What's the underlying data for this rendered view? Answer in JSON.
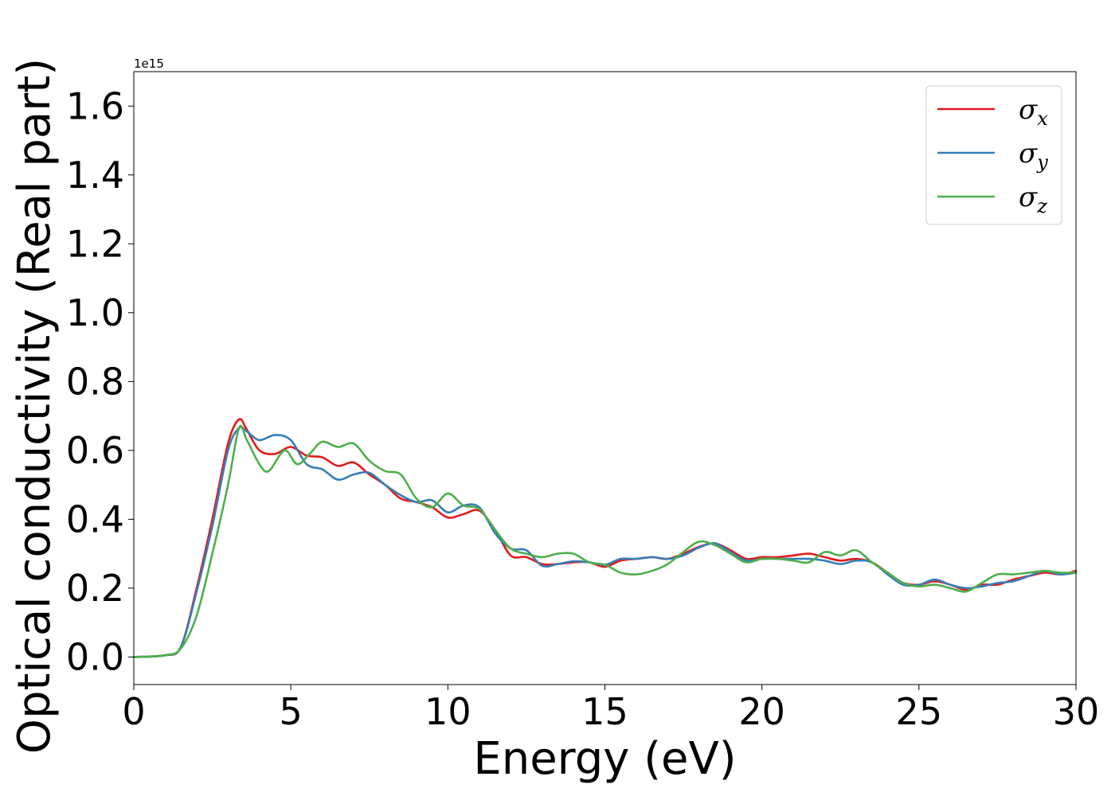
{
  "chart_data": {
    "type": "line",
    "title": "",
    "xlabel": "Energy (eV)",
    "ylabel": "Optical conductivity (Real part)",
    "y_offset_label": "1e15",
    "xlim": [
      0,
      30
    ],
    "ylim": [
      -0.08,
      1.7
    ],
    "x_ticks": [
      0,
      5,
      10,
      15,
      20,
      25,
      30
    ],
    "y_ticks": [
      0.0,
      0.2,
      0.4,
      0.6,
      0.8,
      1.0,
      1.2,
      1.4,
      1.6
    ],
    "x_tick_labels": [
      "0",
      "5",
      "10",
      "15",
      "20",
      "25",
      "30"
    ],
    "y_tick_labels": [
      "0.0",
      "0.2",
      "0.4",
      "0.6",
      "0.8",
      "1.0",
      "1.2",
      "1.4",
      "1.6"
    ],
    "grid": false,
    "legend_position": "top-right",
    "series": [
      {
        "name": "σx",
        "symbol": "σ",
        "sub": "x",
        "color": "#e41a1c",
        "points": [
          [
            0,
            0
          ],
          [
            1,
            0.005
          ],
          [
            1.5,
            0.03
          ],
          [
            2,
            0.2
          ],
          [
            2.5,
            0.4
          ],
          [
            3,
            0.62
          ],
          [
            3.35,
            0.69
          ],
          [
            3.6,
            0.66
          ],
          [
            4,
            0.6
          ],
          [
            4.5,
            0.59
          ],
          [
            5,
            0.61
          ],
          [
            5.5,
            0.585
          ],
          [
            6,
            0.58
          ],
          [
            6.5,
            0.555
          ],
          [
            7,
            0.565
          ],
          [
            7.5,
            0.53
          ],
          [
            8,
            0.5
          ],
          [
            8.5,
            0.46
          ],
          [
            9,
            0.45
          ],
          [
            9.5,
            0.435
          ],
          [
            10,
            0.405
          ],
          [
            10.5,
            0.415
          ],
          [
            11,
            0.425
          ],
          [
            11.5,
            0.37
          ],
          [
            12,
            0.295
          ],
          [
            12.5,
            0.29
          ],
          [
            13,
            0.27
          ],
          [
            13.5,
            0.27
          ],
          [
            14,
            0.275
          ],
          [
            14.5,
            0.275
          ],
          [
            15,
            0.262
          ],
          [
            15.5,
            0.28
          ],
          [
            16,
            0.285
          ],
          [
            16.5,
            0.29
          ],
          [
            17,
            0.285
          ],
          [
            17.5,
            0.3
          ],
          [
            18,
            0.32
          ],
          [
            18.5,
            0.33
          ],
          [
            19,
            0.31
          ],
          [
            19.5,
            0.285
          ],
          [
            20,
            0.29
          ],
          [
            20.5,
            0.29
          ],
          [
            21,
            0.295
          ],
          [
            21.5,
            0.3
          ],
          [
            22,
            0.29
          ],
          [
            22.5,
            0.28
          ],
          [
            23,
            0.285
          ],
          [
            23.5,
            0.275
          ],
          [
            24,
            0.245
          ],
          [
            24.5,
            0.215
          ],
          [
            25,
            0.21
          ],
          [
            25.5,
            0.22
          ],
          [
            26,
            0.21
          ],
          [
            26.5,
            0.195
          ],
          [
            27,
            0.21
          ],
          [
            27.5,
            0.21
          ],
          [
            28,
            0.225
          ],
          [
            28.5,
            0.235
          ],
          [
            29,
            0.245
          ],
          [
            29.5,
            0.24
          ],
          [
            30,
            0.25
          ]
        ]
      },
      {
        "name": "σy",
        "symbol": "σ",
        "sub": "y",
        "color": "#377eb8",
        "points": [
          [
            0,
            0
          ],
          [
            1,
            0.005
          ],
          [
            1.5,
            0.03
          ],
          [
            2,
            0.19
          ],
          [
            2.5,
            0.38
          ],
          [
            3,
            0.6
          ],
          [
            3.35,
            0.665
          ],
          [
            3.6,
            0.655
          ],
          [
            4,
            0.63
          ],
          [
            4.5,
            0.645
          ],
          [
            5,
            0.63
          ],
          [
            5.5,
            0.56
          ],
          [
            6,
            0.545
          ],
          [
            6.5,
            0.515
          ],
          [
            7,
            0.53
          ],
          [
            7.5,
            0.535
          ],
          [
            8,
            0.5
          ],
          [
            8.5,
            0.47
          ],
          [
            9,
            0.45
          ],
          [
            9.5,
            0.455
          ],
          [
            10,
            0.42
          ],
          [
            10.5,
            0.44
          ],
          [
            11,
            0.435
          ],
          [
            11.5,
            0.36
          ],
          [
            12,
            0.315
          ],
          [
            12.5,
            0.31
          ],
          [
            13,
            0.265
          ],
          [
            13.5,
            0.27
          ],
          [
            14,
            0.278
          ],
          [
            14.5,
            0.275
          ],
          [
            15,
            0.268
          ],
          [
            15.5,
            0.285
          ],
          [
            16,
            0.285
          ],
          [
            16.5,
            0.29
          ],
          [
            17,
            0.285
          ],
          [
            17.5,
            0.295
          ],
          [
            18,
            0.318
          ],
          [
            18.5,
            0.33
          ],
          [
            19,
            0.305
          ],
          [
            19.5,
            0.28
          ],
          [
            20,
            0.285
          ],
          [
            20.5,
            0.285
          ],
          [
            21,
            0.285
          ],
          [
            21.5,
            0.285
          ],
          [
            22,
            0.28
          ],
          [
            22.5,
            0.27
          ],
          [
            23,
            0.28
          ],
          [
            23.5,
            0.275
          ],
          [
            24,
            0.24
          ],
          [
            24.5,
            0.21
          ],
          [
            25,
            0.21
          ],
          [
            25.5,
            0.225
          ],
          [
            26,
            0.21
          ],
          [
            26.5,
            0.2
          ],
          [
            27,
            0.205
          ],
          [
            27.5,
            0.215
          ],
          [
            28,
            0.22
          ],
          [
            28.5,
            0.235
          ],
          [
            29,
            0.25
          ],
          [
            29.5,
            0.24
          ],
          [
            30,
            0.245
          ]
        ]
      },
      {
        "name": "σz",
        "symbol": "σ",
        "sub": "z",
        "color": "#4daf4a",
        "points": [
          [
            0,
            0
          ],
          [
            1,
            0.005
          ],
          [
            1.5,
            0.025
          ],
          [
            2,
            0.12
          ],
          [
            2.5,
            0.3
          ],
          [
            3,
            0.5
          ],
          [
            3.35,
            0.665
          ],
          [
            3.6,
            0.63
          ],
          [
            4,
            0.56
          ],
          [
            4.3,
            0.54
          ],
          [
            4.8,
            0.6
          ],
          [
            5.2,
            0.56
          ],
          [
            5.6,
            0.59
          ],
          [
            6,
            0.625
          ],
          [
            6.5,
            0.61
          ],
          [
            7,
            0.62
          ],
          [
            7.5,
            0.57
          ],
          [
            8,
            0.54
          ],
          [
            8.5,
            0.53
          ],
          [
            9,
            0.46
          ],
          [
            9.5,
            0.435
          ],
          [
            10,
            0.475
          ],
          [
            10.5,
            0.44
          ],
          [
            11,
            0.43
          ],
          [
            11.5,
            0.37
          ],
          [
            12,
            0.315
          ],
          [
            12.5,
            0.3
          ],
          [
            13,
            0.29
          ],
          [
            13.5,
            0.3
          ],
          [
            14,
            0.3
          ],
          [
            14.5,
            0.275
          ],
          [
            15,
            0.268
          ],
          [
            15.5,
            0.245
          ],
          [
            16,
            0.24
          ],
          [
            16.5,
            0.25
          ],
          [
            17,
            0.27
          ],
          [
            17.5,
            0.305
          ],
          [
            18,
            0.335
          ],
          [
            18.5,
            0.325
          ],
          [
            19,
            0.3
          ],
          [
            19.5,
            0.275
          ],
          [
            20,
            0.285
          ],
          [
            20.5,
            0.285
          ],
          [
            21,
            0.28
          ],
          [
            21.5,
            0.275
          ],
          [
            22,
            0.305
          ],
          [
            22.5,
            0.295
          ],
          [
            23,
            0.31
          ],
          [
            23.5,
            0.275
          ],
          [
            24,
            0.245
          ],
          [
            24.5,
            0.215
          ],
          [
            25,
            0.205
          ],
          [
            25.5,
            0.21
          ],
          [
            26,
            0.2
          ],
          [
            26.5,
            0.19
          ],
          [
            27,
            0.215
          ],
          [
            27.5,
            0.24
          ],
          [
            28,
            0.24
          ],
          [
            28.5,
            0.245
          ],
          [
            29,
            0.25
          ],
          [
            29.5,
            0.245
          ],
          [
            30,
            0.245
          ]
        ]
      }
    ]
  }
}
